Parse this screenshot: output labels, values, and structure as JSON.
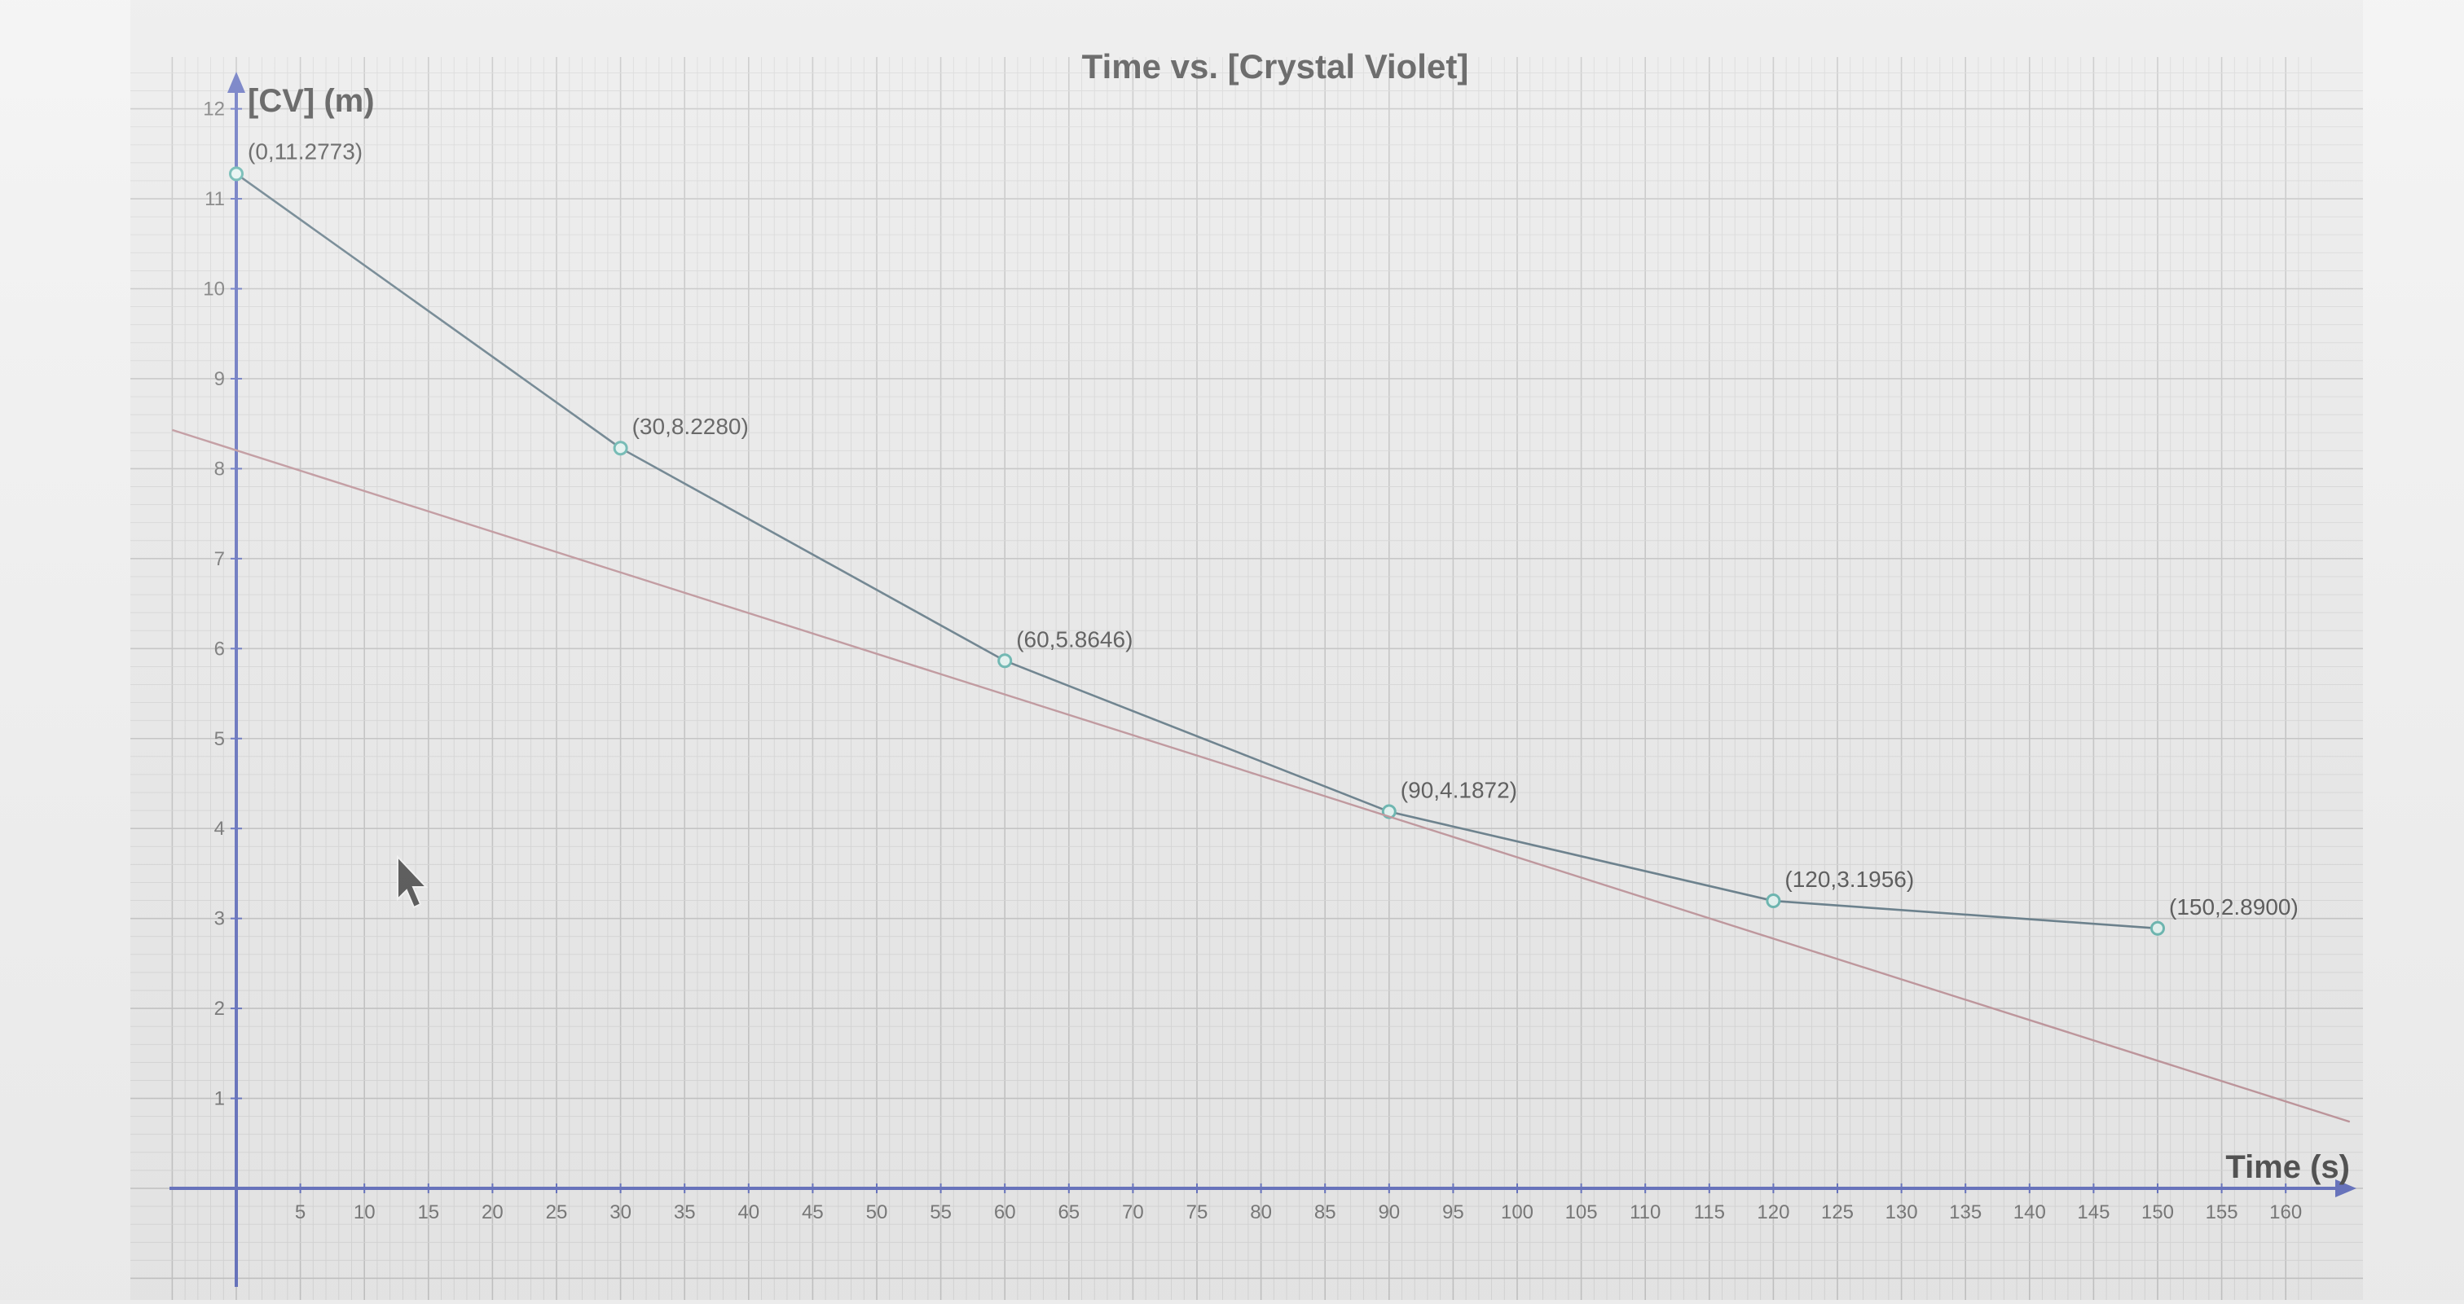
{
  "chart_data": {
    "type": "line",
    "title": "Time vs. [Crystal Violet]",
    "xlabel": "Time (s)",
    "ylabel": "[CV] (m)",
    "xlim": [
      -5,
      162
    ],
    "ylim": [
      -1,
      12.4
    ],
    "x_ticks": [
      5,
      10,
      15,
      20,
      25,
      30,
      35,
      40,
      45,
      50,
      55,
      60,
      65,
      70,
      75,
      80,
      85,
      90,
      95,
      100,
      105,
      110,
      115,
      120,
      125,
      130,
      135,
      140,
      145,
      150,
      155,
      160
    ],
    "y_ticks": [
      1,
      2,
      3,
      4,
      5,
      6,
      7,
      8,
      9,
      10,
      11,
      12
    ],
    "grid": true,
    "series": [
      {
        "x": [
          0,
          30,
          60,
          90,
          120,
          150
        ],
        "y": [
          11.2773,
          8.228,
          5.8646,
          4.1872,
          3.1956,
          2.89
        ],
        "point_labels": [
          "(0,11.2773)",
          "(30,8.2280)",
          "(60,5.8646)",
          "(90,4.1872)",
          "(120,3.1956)",
          "(150,2.8900)"
        ],
        "color": "#3e5b6b",
        "point_color": "#3fa39b"
      },
      {
        "x": [
          -5,
          165
        ],
        "y": [
          8.43,
          0.74
        ],
        "color": "#b07a82"
      }
    ]
  },
  "colors": {
    "paper": "#e6e6e6",
    "grid_minor": "#cdcdcd",
    "grid_major": "#b6b6b6",
    "axis": "#3f4fb0"
  }
}
